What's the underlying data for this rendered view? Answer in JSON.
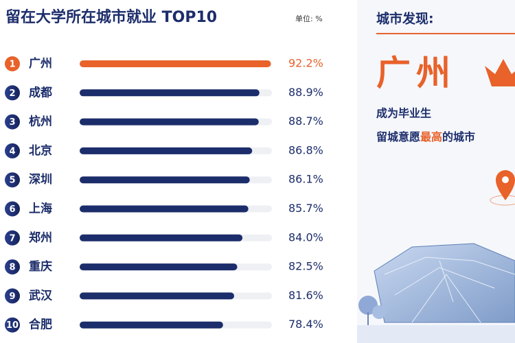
{
  "chart_data": {
    "type": "bar",
    "orientation": "horizontal",
    "title": "留在大学所在城市就业 TOP10",
    "unit": "单位: %",
    "ranks": [
      1,
      2,
      3,
      4,
      5,
      6,
      7,
      8,
      9,
      10
    ],
    "categories": [
      "广州",
      "成都",
      "杭州",
      "北京",
      "深圳",
      "上海",
      "郑州",
      "重庆",
      "武汉",
      "合肥"
    ],
    "values": [
      92.2,
      88.9,
      88.7,
      86.8,
      86.1,
      85.7,
      84.0,
      82.5,
      81.6,
      78.4
    ],
    "value_labels": [
      "92.2%",
      "88.9%",
      "88.7%",
      "86.8%",
      "86.1%",
      "85.7%",
      "84.0%",
      "82.5%",
      "81.6%",
      "78.4%"
    ],
    "xlim": [
      37,
      92.5
    ],
    "color": "#1c2d6b",
    "highlight_color": "#e8622a"
  },
  "panel": {
    "heading": "城市发现:",
    "city": "广州",
    "line1": "成为毕业生",
    "line2_pre": "留城意愿",
    "line2_hl": "最高",
    "line2_post": "的城市"
  }
}
